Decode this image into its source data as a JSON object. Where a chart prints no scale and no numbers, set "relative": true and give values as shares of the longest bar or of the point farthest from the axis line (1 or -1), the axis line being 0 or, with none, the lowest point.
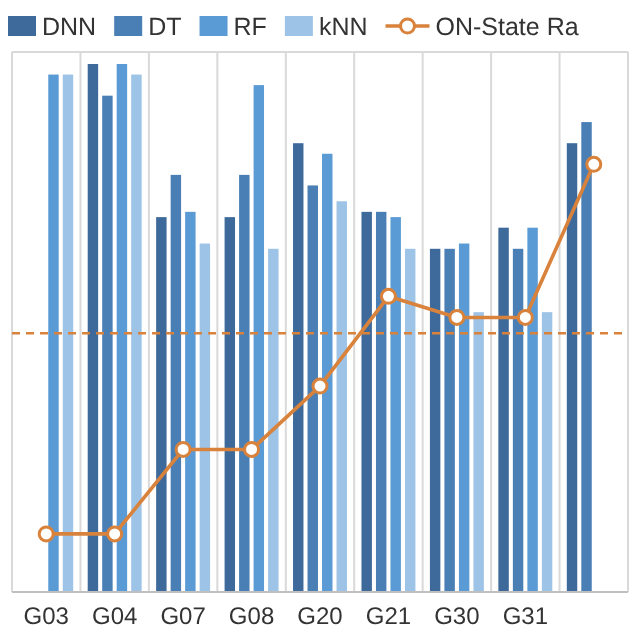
{
  "chart_data": {
    "type": "bar",
    "relative": true,
    "categories": [
      "G03",
      "G04",
      "G07",
      "G08",
      "G20",
      "G21",
      "G30",
      "G31",
      null
    ],
    "series": [
      {
        "name": "DNN",
        "color": "#3e6a9b",
        "values": [
          null,
          1.0,
          0.71,
          0.71,
          0.85,
          0.72,
          0.65,
          0.69,
          0.85
        ]
      },
      {
        "name": "DT",
        "color": "#4a7fb5",
        "values": [
          null,
          0.94,
          0.79,
          0.79,
          0.77,
          0.72,
          0.65,
          0.65,
          0.89
        ]
      },
      {
        "name": "RF",
        "color": "#5b9bd5",
        "values": [
          0.98,
          1.0,
          0.72,
          0.96,
          0.83,
          0.71,
          0.66,
          0.69,
          null
        ]
      },
      {
        "name": "kNN",
        "color": "#9dc3e6",
        "values": [
          0.98,
          0.98,
          0.66,
          0.65,
          0.74,
          0.65,
          0.53,
          0.53,
          null
        ]
      },
      {
        "name": "ON-State Ra",
        "type": "line",
        "color": "#d9823b",
        "marker": "circle",
        "line_style": "solid",
        "values": [
          0.11,
          0.11,
          0.27,
          0.27,
          0.39,
          0.56,
          0.52,
          0.52,
          0.81
        ]
      }
    ],
    "ref_lines": [
      {
        "axis": "y",
        "value": 0.49,
        "color": "#d9823b",
        "line_style": "dashed"
      }
    ],
    "grid": "x",
    "legend": "top"
  }
}
